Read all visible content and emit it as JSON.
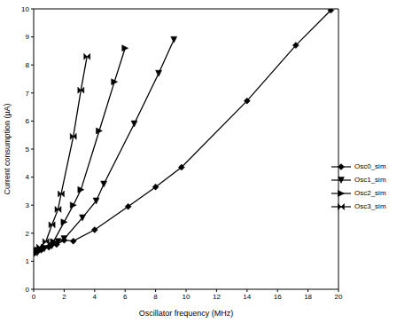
{
  "chart_data": {
    "type": "line",
    "x_label": "Oscillator frequency (MHz)",
    "y_label": "Current consumption (µA)",
    "xlim": [
      0,
      20
    ],
    "xticks": [
      0,
      2,
      4,
      6,
      8,
      10,
      12,
      14,
      16,
      18,
      20
    ],
    "ylim": [
      0,
      10
    ],
    "yticks": [
      0,
      1,
      2,
      3,
      4,
      5,
      6,
      7,
      8,
      9,
      10
    ],
    "grid": false,
    "legend": "right",
    "series": [
      {
        "name": "Osc0_sim",
        "color": "#000000",
        "marker": "diamond",
        "x": [
          0.05,
          0.2,
          0.5,
          1,
          1.5,
          2,
          2.6,
          4,
          6.2,
          8,
          9.7,
          14,
          17.2,
          19.5
        ],
        "values": [
          1.3,
          1.35,
          1.4,
          1.5,
          1.6,
          1.75,
          1.72,
          2.12,
          2.95,
          3.65,
          4.35,
          6.72,
          8.7,
          9.95
        ]
      },
      {
        "name": "Osc1_sim",
        "color": "#000000",
        "marker": "triangle_down",
        "x": [
          0.1,
          0.3,
          0.7,
          1.2,
          1.6,
          2,
          3.2,
          4.1,
          4.6,
          6.6,
          8.2,
          9.2
        ],
        "values": [
          1.3,
          1.35,
          1.45,
          1.55,
          1.7,
          1.8,
          2.55,
          3.15,
          3.75,
          5.9,
          7.7,
          8.9
        ]
      },
      {
        "name": "Osc2_sim",
        "color": "#000000",
        "marker": "triangle_right",
        "x": [
          0.1,
          0.3,
          0.7,
          1.3,
          2,
          2.6,
          3.1,
          4.3,
          5.3,
          6
        ],
        "values": [
          1.3,
          1.4,
          1.5,
          1.7,
          2.4,
          3.0,
          3.55,
          5.65,
          7.4,
          8.6
        ]
      },
      {
        "name": "Osc3_sim",
        "color": "#000000",
        "marker": "bowtie",
        "x": [
          0.05,
          0.2,
          0.4,
          0.8,
          1.2,
          1.6,
          1.8,
          2.6,
          3.1,
          3.5
        ],
        "values": [
          1.3,
          1.4,
          1.5,
          1.7,
          2.3,
          2.85,
          3.4,
          5.45,
          7.1,
          8.3
        ]
      }
    ]
  }
}
